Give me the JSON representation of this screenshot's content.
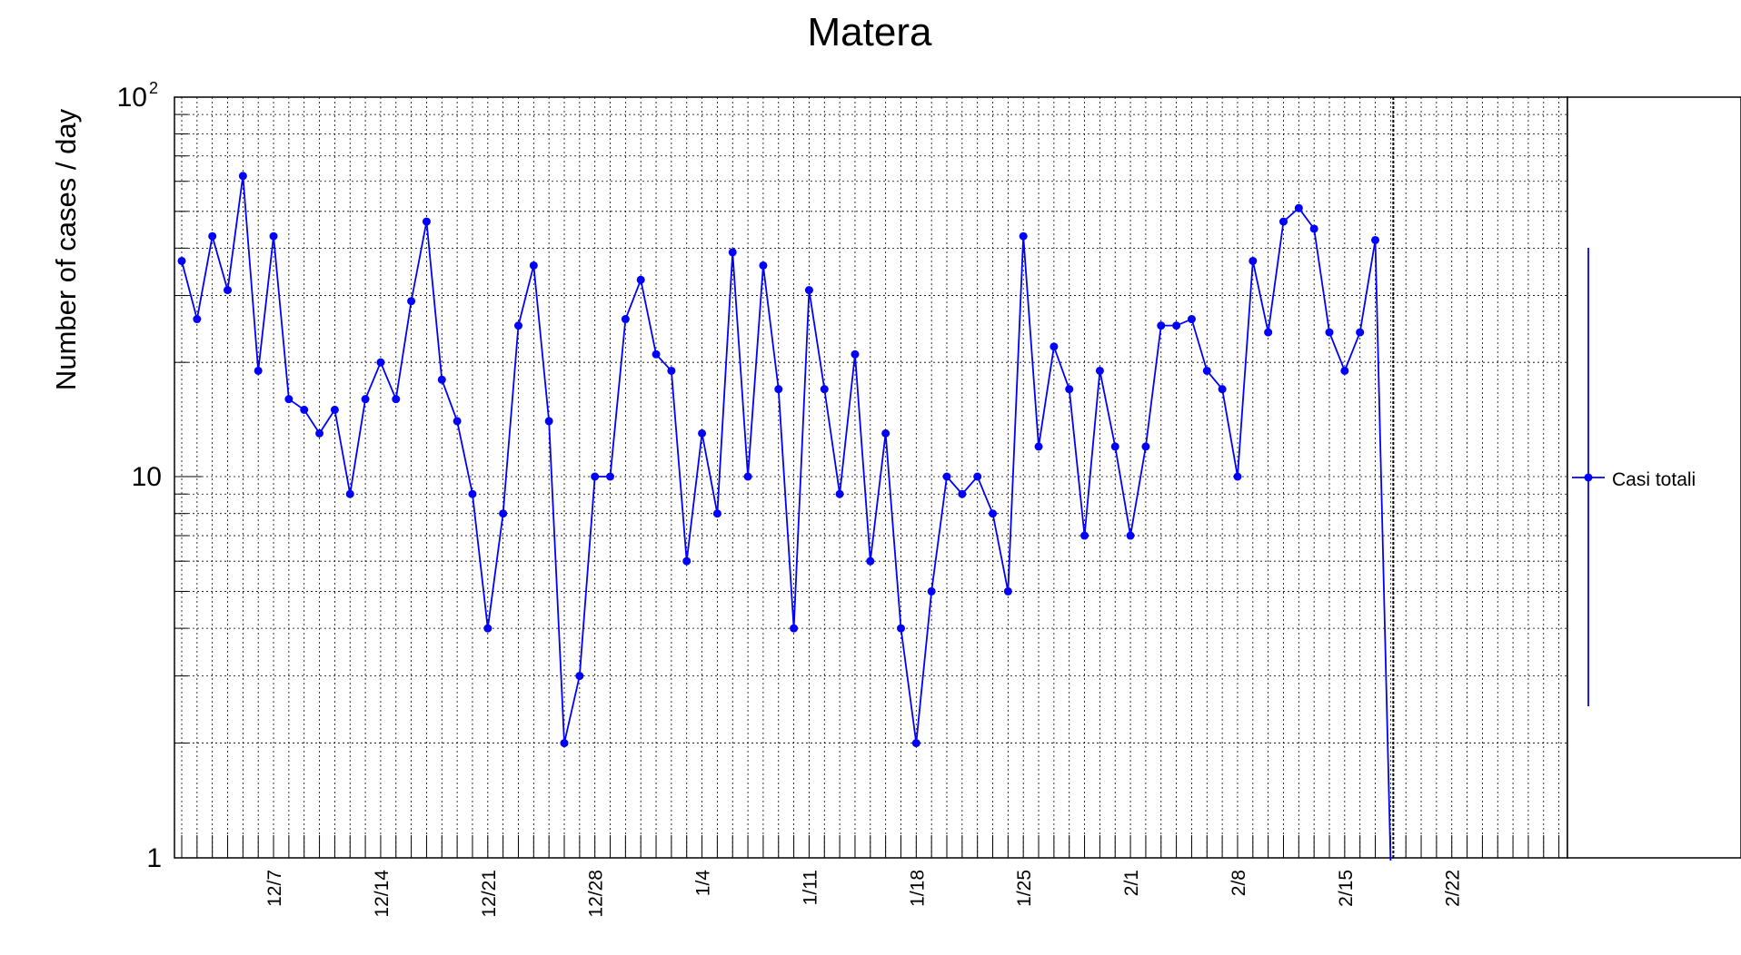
{
  "chart_data": {
    "type": "line",
    "title": "Matera",
    "ylabel": "Number of cases / day",
    "xlabel": "",
    "yscale": "log",
    "ylim": [
      1,
      100
    ],
    "y_tick_labels": [
      {
        "value": 1,
        "label": "1"
      },
      {
        "value": 10,
        "label": "10"
      },
      {
        "value": 100,
        "base": "10",
        "exp": "2"
      }
    ],
    "x_tick_labels": [
      "12/7",
      "12/14",
      "12/21",
      "12/28",
      "1/4",
      "1/11",
      "1/18",
      "1/25",
      "2/1",
      "2/8",
      "2/15",
      "2/22"
    ],
    "grid": true,
    "legend_position": "right",
    "series": [
      {
        "name": "Casi totali",
        "color": "#0000ff",
        "x": [
          "12/1",
          "12/2",
          "12/3",
          "12/4",
          "12/5",
          "12/6",
          "12/7",
          "12/8",
          "12/9",
          "12/10",
          "12/11",
          "12/12",
          "12/13",
          "12/14",
          "12/15",
          "12/16",
          "12/17",
          "12/18",
          "12/19",
          "12/20",
          "12/21",
          "12/22",
          "12/23",
          "12/24",
          "12/25",
          "12/26",
          "12/27",
          "12/28",
          "12/29",
          "12/30",
          "12/31",
          "1/1",
          "1/2",
          "1/3",
          "1/4",
          "1/5",
          "1/6",
          "1/7",
          "1/8",
          "1/9",
          "1/10",
          "1/11",
          "1/12",
          "1/13",
          "1/14",
          "1/15",
          "1/16",
          "1/17",
          "1/18",
          "1/19",
          "1/20",
          "1/21",
          "1/22",
          "1/23",
          "1/24",
          "1/25",
          "1/26",
          "1/27",
          "1/28",
          "1/29",
          "1/30",
          "1/31",
          "2/1",
          "2/2",
          "2/3",
          "2/4",
          "2/5",
          "2/6",
          "2/7",
          "2/8",
          "2/9",
          "2/10",
          "2/11",
          "2/12",
          "2/13",
          "2/14",
          "2/15",
          "2/16",
          "2/17",
          "2/18"
        ],
        "values": [
          37,
          26,
          43,
          31,
          62,
          19,
          43,
          16,
          15,
          13,
          15,
          9,
          16,
          20,
          16,
          29,
          47,
          18,
          14,
          9,
          4,
          8,
          25,
          36,
          14,
          2,
          3,
          10,
          10,
          26,
          33,
          21,
          19,
          6,
          13,
          8,
          39,
          10,
          36,
          17,
          4,
          31,
          17,
          9,
          21,
          6,
          13,
          4,
          2,
          5,
          10,
          9,
          10,
          8,
          5,
          43,
          12,
          22,
          17,
          7,
          19,
          12,
          7,
          12,
          25,
          25,
          26,
          19,
          17,
          10,
          37,
          24,
          47,
          51,
          45,
          24,
          19,
          24,
          42,
          1
        ]
      }
    ],
    "marker_line": "2/18"
  }
}
